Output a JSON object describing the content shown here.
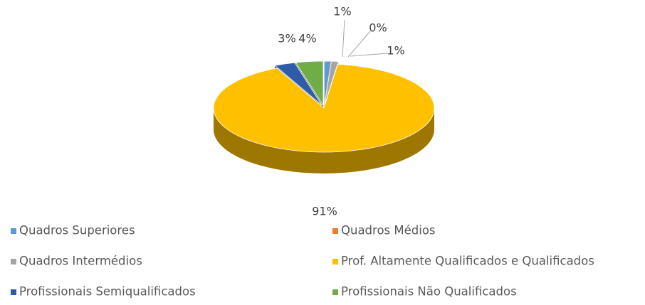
{
  "chart_data": {
    "type": "pie",
    "categories": [
      "Quadros Superiores",
      "Quadros Médios",
      "Quadros Intermédios",
      "Prof. Altamente Qualificados e Qualificados",
      "Profissionais Semiqualificados",
      "Profissionais Não Qualificados"
    ],
    "values": [
      1,
      0,
      1,
      91,
      3,
      4
    ],
    "value_labels": [
      "1%",
      "0%",
      "1%",
      "91%",
      "3%",
      "4%"
    ],
    "colors": [
      "#5b9bd5",
      "#ed7d31",
      "#a5a5a5",
      "#ffc000",
      "#2e5ca8",
      "#70ad47"
    ]
  }
}
